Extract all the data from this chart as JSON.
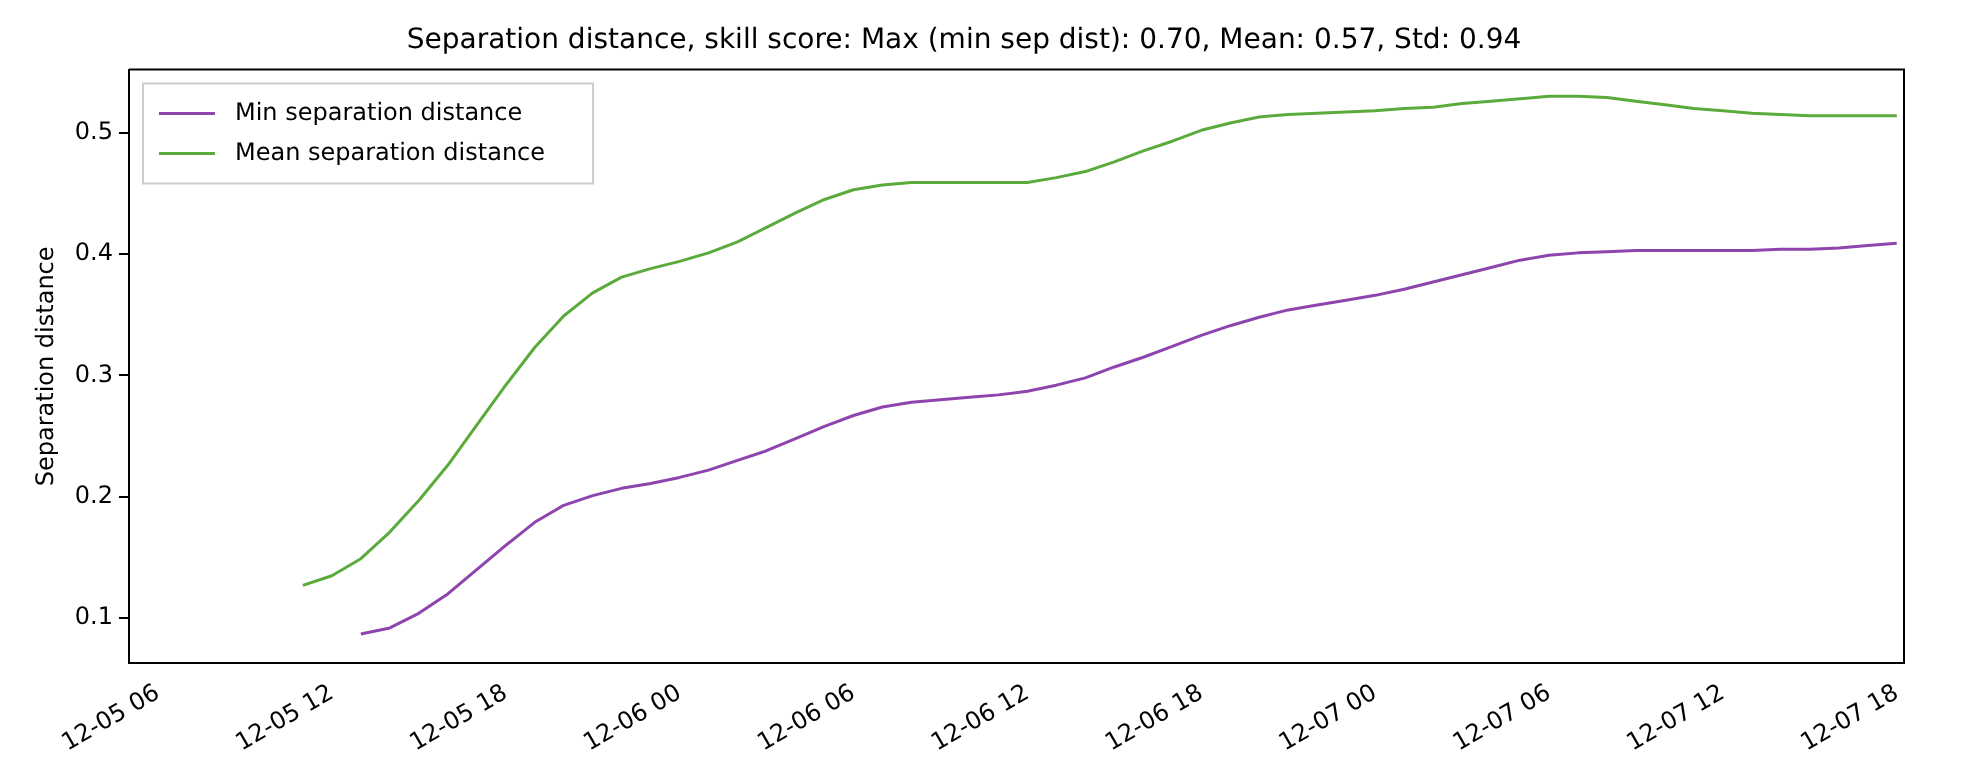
{
  "chart_data": {
    "type": "line",
    "title": "Separation distance, skill score: Max (min sep dist): 0.70, Mean: 0.57, Std: 0.94",
    "ylabel": "Separation distance",
    "xlim": [
      "--12-05T05:00",
      "--12-07T18:15"
    ],
    "xticks": [
      {
        "value": "--12-05T06:00",
        "label": "12-05 06"
      },
      {
        "value": "--12-05T12:00",
        "label": "12-05 12"
      },
      {
        "value": "--12-05T18:00",
        "label": "12-05 18"
      },
      {
        "value": "--12-06T00:00",
        "label": "12-06 00"
      },
      {
        "value": "--12-06T06:00",
        "label": "12-06 06"
      },
      {
        "value": "--12-06T12:00",
        "label": "12-06 12"
      },
      {
        "value": "--12-06T18:00",
        "label": "12-06 18"
      },
      {
        "value": "--12-07T00:00",
        "label": "12-07 00"
      },
      {
        "value": "--12-07T06:00",
        "label": "12-07 06"
      },
      {
        "value": "--12-07T12:00",
        "label": "12-07 12"
      },
      {
        "value": "--12-07T18:00",
        "label": "12-07 18"
      }
    ],
    "ylim": [
      0.063,
      0.552
    ],
    "yticks": [
      0.1,
      0.2,
      0.3,
      0.4,
      0.5
    ],
    "grid": false,
    "legend": "top left",
    "marker": "none",
    "line_style": "solid",
    "series": [
      {
        "name": "Min separation distance",
        "color": "#8e44ad",
        "x": [
          "--12-05T13:00",
          "--12-05T14:00",
          "--12-05T15:00",
          "--12-05T16:00",
          "--12-05T17:00",
          "--12-05T18:00",
          "--12-05T19:00",
          "--12-05T20:00",
          "--12-05T21:00",
          "--12-05T22:00",
          "--12-05T23:00",
          "--12-06T00:00",
          "--12-06T01:00",
          "--12-06T02:00",
          "--12-06T03:00",
          "--12-06T04:00",
          "--12-06T05:00",
          "--12-06T06:00",
          "--12-06T07:00",
          "--12-06T08:00",
          "--12-06T09:00",
          "--12-06T10:00",
          "--12-06T11:00",
          "--12-06T12:00",
          "--12-06T13:00",
          "--12-06T14:00",
          "--12-06T15:00",
          "--12-06T16:00",
          "--12-06T17:00",
          "--12-06T18:00",
          "--12-06T19:00",
          "--12-06T20:00",
          "--12-06T21:00",
          "--12-06T22:00",
          "--12-06T23:00",
          "--12-07T00:00",
          "--12-07T01:00",
          "--12-07T02:00",
          "--12-07T03:00",
          "--12-07T04:00",
          "--12-07T05:00",
          "--12-07T06:00",
          "--12-07T07:00",
          "--12-07T08:00",
          "--12-07T09:00",
          "--12-07T10:00",
          "--12-07T11:00",
          "--12-07T12:00",
          "--12-07T13:00",
          "--12-07T14:00",
          "--12-07T15:00",
          "--12-07T16:00",
          "--12-07T17:00",
          "--12-07T18:00"
        ],
        "values": [
          0.087,
          0.092,
          0.104,
          0.12,
          0.14,
          0.16,
          0.179,
          0.193,
          0.201,
          0.207,
          0.211,
          0.216,
          0.222,
          0.23,
          0.238,
          0.248,
          0.258,
          0.267,
          0.274,
          0.278,
          0.28,
          0.282,
          0.284,
          0.287,
          0.292,
          0.298,
          0.307,
          0.315,
          0.324,
          0.333,
          0.341,
          0.348,
          0.354,
          0.358,
          0.362,
          0.366,
          0.371,
          0.377,
          0.383,
          0.389,
          0.395,
          0.399,
          0.401,
          0.402,
          0.403,
          0.403,
          0.403,
          0.403,
          0.403,
          0.404,
          0.404,
          0.405,
          0.407,
          0.409
        ]
      },
      {
        "name": "Mean separation distance",
        "color": "#5aab3c",
        "x": [
          "--12-05T11:00",
          "--12-05T12:00",
          "--12-05T13:00",
          "--12-05T14:00",
          "--12-05T15:00",
          "--12-05T16:00",
          "--12-05T17:00",
          "--12-05T18:00",
          "--12-05T19:00",
          "--12-05T20:00",
          "--12-05T21:00",
          "--12-05T22:00",
          "--12-05T23:00",
          "--12-06T00:00",
          "--12-06T01:00",
          "--12-06T02:00",
          "--12-06T03:00",
          "--12-06T04:00",
          "--12-06T05:00",
          "--12-06T06:00",
          "--12-06T07:00",
          "--12-06T08:00",
          "--12-06T09:00",
          "--12-06T10:00",
          "--12-06T11:00",
          "--12-06T12:00",
          "--12-06T13:00",
          "--12-06T14:00",
          "--12-06T15:00",
          "--12-06T16:00",
          "--12-06T17:00",
          "--12-06T18:00",
          "--12-06T19:00",
          "--12-06T20:00",
          "--12-06T21:00",
          "--12-06T22:00",
          "--12-06T23:00",
          "--12-07T00:00",
          "--12-07T01:00",
          "--12-07T02:00",
          "--12-07T03:00",
          "--12-07T04:00",
          "--12-07T05:00",
          "--12-07T06:00",
          "--12-07T07:00",
          "--12-07T08:00",
          "--12-07T09:00",
          "--12-07T10:00",
          "--12-07T11:00",
          "--12-07T12:00",
          "--12-07T13:00",
          "--12-07T14:00",
          "--12-07T15:00",
          "--12-07T16:00",
          "--12-07T17:00",
          "--12-07T18:00"
        ],
        "values": [
          0.127,
          0.135,
          0.149,
          0.171,
          0.197,
          0.226,
          0.259,
          0.292,
          0.323,
          0.349,
          0.368,
          0.381,
          0.388,
          0.394,
          0.401,
          0.41,
          0.422,
          0.434,
          0.445,
          0.453,
          0.457,
          0.459,
          0.459,
          0.459,
          0.459,
          0.459,
          0.463,
          0.468,
          0.476,
          0.485,
          0.493,
          0.502,
          0.508,
          0.513,
          0.515,
          0.516,
          0.517,
          0.518,
          0.52,
          0.521,
          0.524,
          0.526,
          0.528,
          0.53,
          0.53,
          0.529,
          0.526,
          0.523,
          0.52,
          0.518,
          0.516,
          0.515,
          0.514,
          0.514,
          0.514,
          0.514
        ]
      }
    ]
  }
}
